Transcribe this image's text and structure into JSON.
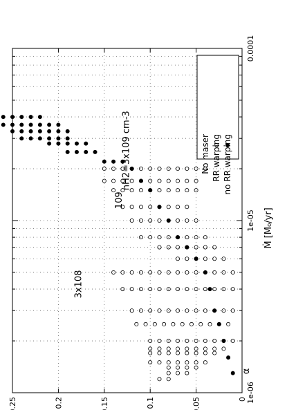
{
  "chart_data": {
    "type": "scatter",
    "orientation": "rotated-90-ccw",
    "x_scale": "log",
    "xlabel": "Ṁ [M₀/yr]",
    "ylabel": "α",
    "xlim": [
      1e-06,
      0.0001
    ],
    "ylim": [
      0,
      0.25
    ],
    "x_ticks": [
      {
        "value": 1e-06,
        "label": "1e-06"
      },
      {
        "value": 1e-05,
        "label": "1e-05"
      },
      {
        "value": 0.0001,
        "label": "0.0001"
      }
    ],
    "y_ticks": [
      {
        "value": 0,
        "label": "0"
      },
      {
        "value": 0.05,
        "label": "0.05"
      },
      {
        "value": 0.1,
        "label": "0.1"
      },
      {
        "value": 0.15,
        "label": "0.15"
      },
      {
        "value": 0.2,
        "label": "0.2"
      },
      {
        "value": 0.25,
        "label": "0.25"
      }
    ],
    "grid": true,
    "legend": {
      "placement": "top-right"
    },
    "series": [
      {
        "name": "No maser",
        "marker": "none",
        "x": [],
        "y": []
      },
      {
        "name": "RR warping",
        "marker": "open-circle",
        "x": [
          1.2e-06,
          1.2e-06,
          1.3e-06,
          1.3e-06,
          1.3e-06,
          1.4e-06,
          1.4e-06,
          1.4e-06,
          1.4e-06,
          1.5e-06,
          1.5e-06,
          1.5e-06,
          1.5e-06,
          1.5e-06,
          1.5e-06,
          1.5e-06,
          1.7e-06,
          1.7e-06,
          1.7e-06,
          1.7e-06,
          1.7e-06,
          1.7e-06,
          1.7e-06,
          1.7e-06,
          1.8e-06,
          1.8e-06,
          1.8e-06,
          1.8e-06,
          1.8e-06,
          1.8e-06,
          1.8e-06,
          1.8e-06,
          1.8e-06,
          2e-06,
          2e-06,
          2e-06,
          2e-06,
          2e-06,
          2e-06,
          2e-06,
          2e-06,
          2e-06,
          2e-06,
          2.5e-06,
          2.5e-06,
          2.5e-06,
          2.5e-06,
          2.5e-06,
          2.5e-06,
          2.5e-06,
          2.5e-06,
          2.5e-06,
          2.5e-06,
          2.5e-06,
          3e-06,
          3e-06,
          3e-06,
          3e-06,
          3e-06,
          3e-06,
          3e-06,
          3e-06,
          3e-06,
          3e-06,
          3e-06,
          3e-06,
          4e-06,
          4e-06,
          4e-06,
          4e-06,
          4e-06,
          4e-06,
          4e-06,
          4e-06,
          4e-06,
          4e-06,
          4e-06,
          4e-06,
          4e-06,
          5e-06,
          5e-06,
          5e-06,
          5e-06,
          5e-06,
          5e-06,
          5e-06,
          5e-06,
          5e-06,
          5e-06,
          5e-06,
          5e-06,
          5e-06,
          5e-06,
          6e-06,
          6e-06,
          6e-06,
          6e-06,
          6e-06,
          6e-06,
          7e-06,
          7e-06,
          7e-06,
          7e-06,
          7e-06,
          7e-06,
          7e-06,
          8e-06,
          8e-06,
          8e-06,
          8e-06,
          8e-06,
          8e-06,
          8e-06,
          8e-06,
          1e-05,
          1e-05,
          1e-05,
          1e-05,
          1e-05,
          1e-05,
          1e-05,
          1e-05,
          1.2e-05,
          1.2e-05,
          1.2e-05,
          1.2e-05,
          1.2e-05,
          1.2e-05,
          1.2e-05,
          1.2e-05,
          1.5e-05,
          1.5e-05,
          1.5e-05,
          1.5e-05,
          1.5e-05,
          1.5e-05,
          1.5e-05,
          1.5e-05,
          1.5e-05,
          1.5e-05,
          1.7e-05,
          1.7e-05,
          1.7e-05,
          1.7e-05,
          1.7e-05,
          1.7e-05,
          1.7e-05,
          1.7e-05,
          1.7e-05,
          1.7e-05,
          1.7e-05,
          2e-05,
          2e-05,
          2e-05,
          2e-05,
          2e-05,
          2e-05,
          2e-05,
          2e-05,
          2e-05,
          2e-05,
          2e-05,
          2e-05
        ],
        "y": [
          0.08,
          0.09,
          0.06,
          0.07,
          0.08,
          0.05,
          0.06,
          0.07,
          0.08,
          0.04,
          0.05,
          0.06,
          0.07,
          0.08,
          0.09,
          0.1,
          0.03,
          0.04,
          0.05,
          0.06,
          0.07,
          0.08,
          0.09,
          0.1,
          0.02,
          0.03,
          0.04,
          0.05,
          0.06,
          0.07,
          0.08,
          0.09,
          0.1,
          0.01,
          0.02,
          0.03,
          0.04,
          0.05,
          0.06,
          0.07,
          0.08,
          0.09,
          0.1,
          0.015,
          0.025,
          0.035,
          0.045,
          0.055,
          0.065,
          0.075,
          0.085,
          0.095,
          0.105,
          0.115,
          0.01,
          0.02,
          0.03,
          0.04,
          0.05,
          0.06,
          0.07,
          0.08,
          0.09,
          0.1,
          0.11,
          0.12,
          0.01,
          0.02,
          0.03,
          0.04,
          0.05,
          0.06,
          0.07,
          0.08,
          0.09,
          0.1,
          0.11,
          0.12,
          0.13,
          0.01,
          0.02,
          0.03,
          0.04,
          0.05,
          0.06,
          0.07,
          0.08,
          0.09,
          0.1,
          0.11,
          0.12,
          0.13,
          0.14,
          0.02,
          0.03,
          0.04,
          0.05,
          0.06,
          0.07,
          0.03,
          0.04,
          0.05,
          0.06,
          0.07,
          0.08,
          0.09,
          0.04,
          0.05,
          0.06,
          0.07,
          0.08,
          0.09,
          0.1,
          0.11,
          0.05,
          0.06,
          0.07,
          0.08,
          0.09,
          0.1,
          0.11,
          0.12,
          0.06,
          0.07,
          0.08,
          0.09,
          0.1,
          0.11,
          0.12,
          0.13,
          0.05,
          0.06,
          0.07,
          0.08,
          0.09,
          0.1,
          0.11,
          0.12,
          0.13,
          0.14,
          0.05,
          0.06,
          0.07,
          0.08,
          0.09,
          0.1,
          0.11,
          0.12,
          0.13,
          0.14,
          0.15,
          0.04,
          0.05,
          0.06,
          0.07,
          0.08,
          0.09,
          0.1,
          0.11,
          0.12,
          0.13,
          0.14,
          0.15
        ]
      },
      {
        "name": "no RR warping",
        "marker": "filled-circle",
        "x": [
          1.3e-06,
          1.6e-06,
          2e-06,
          2.5e-06,
          3e-06,
          4e-06,
          5e-06,
          6e-06,
          7e-06,
          8e-06,
          1e-05,
          1.2e-05,
          1.5e-05,
          1.7e-05,
          2e-05,
          2.2e-05,
          2.2e-05,
          2.2e-05,
          2.5e-05,
          2.5e-05,
          2.5e-05,
          2.5e-05,
          2.8e-05,
          2.8e-05,
          2.8e-05,
          2.8e-05,
          2.8e-05,
          3e-05,
          3e-05,
          3e-05,
          3e-05,
          3e-05,
          3e-05,
          3.3e-05,
          3.3e-05,
          3.3e-05,
          3.3e-05,
          3.3e-05,
          3.3e-05,
          3.3e-05,
          3.6e-05,
          3.6e-05,
          3.6e-05,
          3.6e-05,
          3.6e-05,
          3.6e-05,
          3.6e-05,
          4e-05,
          4e-05,
          4e-05,
          4e-05,
          4e-05,
          4e-05
        ],
        "y": [
          0.01,
          0.015,
          0.02,
          0.025,
          0.03,
          0.035,
          0.04,
          0.05,
          0.06,
          0.07,
          0.08,
          0.09,
          0.1,
          0.11,
          0.12,
          0.13,
          0.14,
          0.15,
          0.16,
          0.17,
          0.18,
          0.19,
          0.17,
          0.18,
          0.19,
          0.2,
          0.21,
          0.19,
          0.2,
          0.21,
          0.22,
          0.23,
          0.24,
          0.19,
          0.2,
          0.21,
          0.22,
          0.23,
          0.24,
          0.25,
          0.2,
          0.21,
          0.22,
          0.23,
          0.24,
          0.25,
          0.26,
          0.22,
          0.23,
          0.24,
          0.25,
          0.26,
          0.27
        ]
      }
    ],
    "annotations": [
      {
        "label": "nH2=3x109 cm-3",
        "x": 2.55e-05,
        "y": 0.123
      },
      {
        "label": "109",
        "x": 1.31e-05,
        "y": 0.131
      },
      {
        "label": "3x108",
        "x": 4.27e-06,
        "y": 0.175
      }
    ],
    "colors": {
      "axis": "#000000",
      "grid": "#666666",
      "marker": "#000000",
      "background": "#ffffff"
    }
  }
}
